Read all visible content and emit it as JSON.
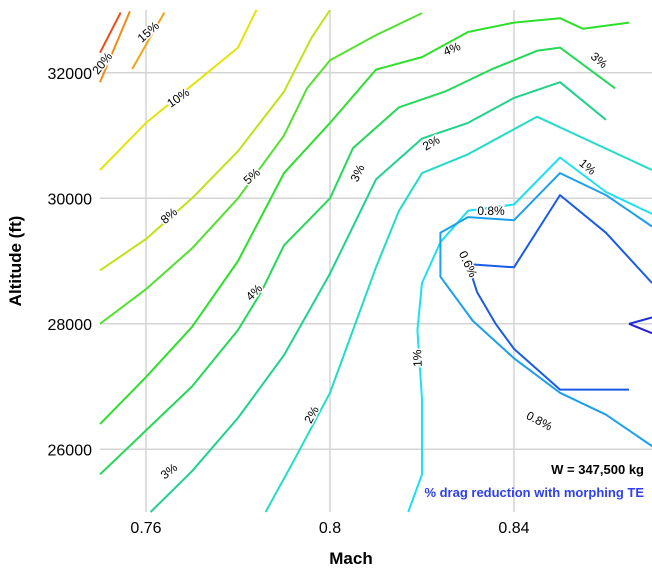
{
  "chart_data": {
    "type": "contour",
    "xlabel": "Mach",
    "ylabel": "Altitude (ft)",
    "xlim": [
      0.75,
      0.87
    ],
    "ylim": [
      25000,
      33000
    ],
    "x_ticks": [
      0.76,
      0.8,
      0.84
    ],
    "x_tick_labels": [
      "0.76",
      "0.8",
      "0.84"
    ],
    "y_ticks": [
      26000,
      28000,
      30000,
      32000
    ],
    "y_tick_labels": [
      "26000",
      "28000",
      "30000",
      "32000"
    ],
    "grid": true,
    "annotations": [
      {
        "name": "weight",
        "text": "W = 347,500 kg",
        "color": "#000000"
      },
      {
        "name": "description",
        "text": "% drag reduction with morphing TE",
        "color": "#2f3ff0"
      }
    ],
    "contours": [
      {
        "label": "20%",
        "color": "#e8501c",
        "points": [
          [
            0.75,
            32320
          ],
          [
            0.7545,
            32960
          ]
        ]
      },
      {
        "label": "",
        "color": "#f28b16",
        "points": [
          [
            0.75,
            31850
          ],
          [
            0.7565,
            32980
          ]
        ]
      },
      {
        "label": "15%",
        "color": "#f0a518",
        "points": [
          [
            0.757,
            32060
          ],
          [
            0.764,
            32960
          ]
        ]
      },
      {
        "label": "10%",
        "color": "#e4e40c",
        "points": [
          [
            0.75,
            30450
          ],
          [
            0.76,
            31200
          ],
          [
            0.77,
            31800
          ],
          [
            0.78,
            32400
          ],
          [
            0.784,
            33000
          ]
        ]
      },
      {
        "label": "8%",
        "color": "#bde41a",
        "points": [
          [
            0.75,
            28850
          ],
          [
            0.76,
            29350
          ],
          [
            0.77,
            30000
          ],
          [
            0.78,
            30750
          ],
          [
            0.79,
            31700
          ],
          [
            0.796,
            32560
          ],
          [
            0.8,
            33000
          ]
        ]
      },
      {
        "label": "5%",
        "color": "#54e030",
        "points": [
          [
            0.75,
            28000
          ],
          [
            0.76,
            28550
          ],
          [
            0.77,
            29200
          ],
          [
            0.78,
            30000
          ],
          [
            0.79,
            31000
          ],
          [
            0.795,
            31750
          ],
          [
            0.8,
            32200
          ],
          [
            0.81,
            32600
          ],
          [
            0.82,
            32950
          ]
        ]
      },
      {
        "label": "4%",
        "color": "#2de02b",
        "points": [
          [
            0.75,
            26400
          ],
          [
            0.76,
            27150
          ],
          [
            0.77,
            27950
          ],
          [
            0.78,
            29000
          ],
          [
            0.79,
            30400
          ],
          [
            0.8,
            31200
          ],
          [
            0.81,
            32050
          ],
          [
            0.82,
            32250
          ],
          [
            0.83,
            32650
          ],
          [
            0.84,
            32800
          ],
          [
            0.85,
            32870
          ],
          [
            0.855,
            32700
          ],
          [
            0.865,
            32800
          ]
        ]
      },
      {
        "label": "3%",
        "color": "#26d85a",
        "points": [
          [
            0.75,
            25600
          ],
          [
            0.76,
            26300
          ],
          [
            0.77,
            27000
          ],
          [
            0.78,
            27900
          ],
          [
            0.785,
            28500
          ],
          [
            0.79,
            29250
          ],
          [
            0.8,
            30000
          ],
          [
            0.805,
            30800
          ],
          [
            0.815,
            31450
          ],
          [
            0.825,
            31700
          ],
          [
            0.835,
            32050
          ],
          [
            0.845,
            32350
          ],
          [
            0.85,
            32400
          ],
          [
            0.862,
            31750
          ]
        ]
      },
      {
        "label": "",
        "color": "#20d28c",
        "points": [
          [
            0.761,
            25000
          ],
          [
            0.77,
            25650
          ],
          [
            0.78,
            26500
          ],
          [
            0.79,
            27500
          ],
          [
            0.8,
            28800
          ],
          [
            0.81,
            30300
          ],
          [
            0.82,
            30950
          ],
          [
            0.83,
            31200
          ],
          [
            0.84,
            31600
          ],
          [
            0.85,
            31850
          ],
          [
            0.86,
            31250
          ]
        ]
      },
      {
        "label": "2%",
        "color": "#22dcc8",
        "points": [
          [
            0.786,
            25000
          ],
          [
            0.792,
            25800
          ],
          [
            0.8,
            26900
          ],
          [
            0.805,
            27900
          ],
          [
            0.81,
            28900
          ],
          [
            0.815,
            29800
          ],
          [
            0.82,
            30400
          ],
          [
            0.83,
            30700
          ],
          [
            0.84,
            31100
          ],
          [
            0.845,
            31300
          ],
          [
            0.87,
            30450
          ]
        ]
      },
      {
        "label": "1%",
        "color": "#1ee0f0",
        "points": [
          [
            0.817,
            25000
          ],
          [
            0.82,
            25600
          ],
          [
            0.82,
            26800
          ],
          [
            0.819,
            27900
          ],
          [
            0.82,
            28650
          ],
          [
            0.824,
            29300
          ],
          [
            0.83,
            29800
          ],
          [
            0.84,
            29900
          ],
          [
            0.85,
            30650
          ],
          [
            0.86,
            30100
          ],
          [
            0.87,
            29750
          ]
        ]
      },
      {
        "label": "0.8%",
        "color": "#1da0ec",
        "points": [
          [
            0.874,
            25850
          ],
          [
            0.86,
            26550
          ],
          [
            0.85,
            26900
          ],
          [
            0.84,
            27450
          ],
          [
            0.831,
            28050
          ],
          [
            0.824,
            28750
          ],
          [
            0.824,
            29450
          ],
          [
            0.83,
            29700
          ],
          [
            0.84,
            29650
          ],
          [
            0.85,
            30400
          ],
          [
            0.86,
            30050
          ],
          [
            0.87,
            29550
          ]
        ]
      },
      {
        "label": "0.6%",
        "color": "#1a5be6",
        "points": [
          [
            0.865,
            26950
          ],
          [
            0.85,
            26950
          ],
          [
            0.84,
            27600
          ],
          [
            0.836,
            28000
          ],
          [
            0.832,
            28500
          ],
          [
            0.83,
            28950
          ],
          [
            0.84,
            28900
          ],
          [
            0.85,
            30050
          ],
          [
            0.86,
            29450
          ],
          [
            0.87,
            28650
          ]
        ]
      },
      {
        "label": "",
        "color": "#1f2ed6",
        "points": [
          [
            0.865,
            28000
          ],
          [
            0.87,
            28100
          ]
        ]
      },
      {
        "label": "",
        "color": "#2420d0",
        "points": [
          [
            0.865,
            28000
          ],
          [
            0.87,
            27850
          ]
        ]
      }
    ],
    "contour_label_positions": [
      {
        "text": "20%",
        "x": 0.7505,
        "y": 32150,
        "angle": -52
      },
      {
        "text": "15%",
        "x": 0.7605,
        "y": 32650,
        "angle": -42
      },
      {
        "text": "10%",
        "x": 0.767,
        "y": 31600,
        "angle": -35
      },
      {
        "text": "8%",
        "x": 0.765,
        "y": 29720,
        "angle": -40
      },
      {
        "text": "5%",
        "x": 0.783,
        "y": 30350,
        "angle": -42
      },
      {
        "text": "4%",
        "x": 0.7835,
        "y": 28500,
        "angle": -45
      },
      {
        "text": "4%",
        "x": 0.8265,
        "y": 32380,
        "angle": -22
      },
      {
        "text": "3%",
        "x": 0.806,
        "y": 30400,
        "angle": -65
      },
      {
        "text": "3%",
        "x": 0.8585,
        "y": 32200,
        "angle": 40
      },
      {
        "text": "3%",
        "x": 0.765,
        "y": 25650,
        "angle": -38
      },
      {
        "text": "2%",
        "x": 0.822,
        "y": 30880,
        "angle": -30
      },
      {
        "text": "2%",
        "x": 0.796,
        "y": 26550,
        "angle": -62
      },
      {
        "text": "1%",
        "x": 0.856,
        "y": 30500,
        "angle": 40
      },
      {
        "text": "1%",
        "x": 0.819,
        "y": 27450,
        "angle": -92
      },
      {
        "text": "0.8%",
        "x": 0.835,
        "y": 29800,
        "angle": 0
      },
      {
        "text": "0.8%",
        "x": 0.8455,
        "y": 26450,
        "angle": 28
      },
      {
        "text": "0.6%",
        "x": 0.83,
        "y": 28950,
        "angle": 65
      }
    ]
  }
}
